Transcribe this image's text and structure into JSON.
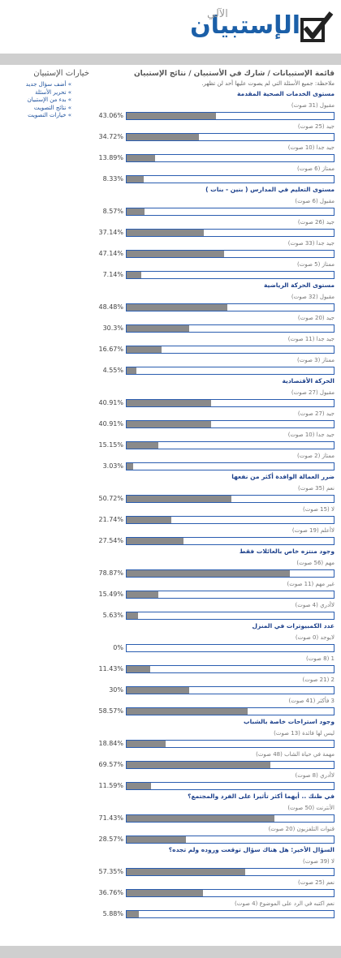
{
  "header": {
    "logo_title": "الإستبيان",
    "logo_subtitle": "الآلي"
  },
  "sidebar": {
    "title": "خيارات الإستبيان",
    "links": [
      "» أضف سؤال جديد",
      "» تحرير الأسئلة",
      "» بدء من الإستبيان",
      "» نتائج التصويت",
      "» خيارات التصويت"
    ]
  },
  "breadcrumb": "قائمة الإستبيانات / شارك في الأستبيان / نتائج الإستبيان",
  "note": "ملاحظة: جميع الأسئلة التي لم يصوت عليها أحد لن تظهر.",
  "questions": [
    {
      "title": "مستوى الخدمات الصحية المقدمة",
      "options": [
        {
          "label": "مقبول (31 صوت)",
          "percent": 43.06,
          "percent_label": "43.06%"
        },
        {
          "label": "جيد (25 صوت)",
          "percent": 34.72,
          "percent_label": "34.72%"
        },
        {
          "label": "جيد جدا (10 صوت)",
          "percent": 13.89,
          "percent_label": "13.89%"
        },
        {
          "label": "ممتاز (6 صوت)",
          "percent": 8.33,
          "percent_label": "8.33%"
        }
      ]
    },
    {
      "title": "مستوى التعليم في المدارس ( بنين - بنات )",
      "options": [
        {
          "label": "مقبول (6 صوت)",
          "percent": 8.57,
          "percent_label": "8.57%"
        },
        {
          "label": "جيد (26 صوت)",
          "percent": 37.14,
          "percent_label": "37.14%"
        },
        {
          "label": "جيد جدا (33 صوت)",
          "percent": 47.14,
          "percent_label": "47.14%"
        },
        {
          "label": "ممتاز (5 صوت)",
          "percent": 7.14,
          "percent_label": "7.14%"
        }
      ]
    },
    {
      "title": "مستوى الحركة الرياضية",
      "options": [
        {
          "label": "مقبول (32 صوت)",
          "percent": 48.48,
          "percent_label": "48.48%"
        },
        {
          "label": "جيد (20 صوت)",
          "percent": 30.3,
          "percent_label": "30.3%"
        },
        {
          "label": "جيد جدا (11 صوت)",
          "percent": 16.67,
          "percent_label": "16.67%"
        },
        {
          "label": "ممتاز (3 صوت)",
          "percent": 4.55,
          "percent_label": "4.55%"
        }
      ]
    },
    {
      "title": "الحركة الأقتصادية",
      "options": [
        {
          "label": "مقبول (27 صوت)",
          "percent": 40.91,
          "percent_label": "40.91%"
        },
        {
          "label": "جيد (27 صوت)",
          "percent": 40.91,
          "percent_label": "40.91%"
        },
        {
          "label": "جيد جدا (10 صوت)",
          "percent": 15.15,
          "percent_label": "15.15%"
        },
        {
          "label": "ممتاز (2 صوت)",
          "percent": 3.03,
          "percent_label": "3.03%"
        }
      ]
    },
    {
      "title": "ضرر العمالة الوافدة أكثر من نفعها",
      "options": [
        {
          "label": "نعم (35 صوت)",
          "percent": 50.72,
          "percent_label": "50.72%"
        },
        {
          "label": "لا (15 صوت)",
          "percent": 21.74,
          "percent_label": "21.74%"
        },
        {
          "label": "لاأعلم (19 صوت)",
          "percent": 27.54,
          "percent_label": "27.54%"
        }
      ]
    },
    {
      "title": "وجود منتزه خاص بالعائلات فقط",
      "options": [
        {
          "label": "مهم (56 صوت)",
          "percent": 78.87,
          "percent_label": "78.87%"
        },
        {
          "label": "غير مهم (11 صوت)",
          "percent": 15.49,
          "percent_label": "15.49%"
        },
        {
          "label": "لاأدري (4 صوت)",
          "percent": 5.63,
          "percent_label": "5.63%"
        }
      ]
    },
    {
      "title": "عدد الكمبيوترات في المنزل",
      "options": [
        {
          "label": "لايوجد (0 صوت)",
          "percent": 0,
          "percent_label": "0%"
        },
        {
          "label": "1 (8 صوت)",
          "percent": 11.43,
          "percent_label": "11.43%"
        },
        {
          "label": "2 (21 صوت)",
          "percent": 30,
          "percent_label": "30%"
        },
        {
          "label": "3 فأكثر (41 صوت)",
          "percent": 58.57,
          "percent_label": "58.57%"
        }
      ]
    },
    {
      "title": "وجود استراحات خاصة بالشباب",
      "options": [
        {
          "label": "ليس لها فائدة (13 صوت)",
          "percent": 18.84,
          "percent_label": "18.84%"
        },
        {
          "label": "مهمة في حياة الشاب (48 صوت)",
          "percent": 69.57,
          "percent_label": "69.57%"
        },
        {
          "label": "لاأدري (8 صوت)",
          "percent": 11.59,
          "percent_label": "11.59%"
        }
      ]
    },
    {
      "title": "في ظنك .. أيهما أكثر تأثيرا على الفرد والمجتمع؟",
      "options": [
        {
          "label": "الأنترنت (50 صوت)",
          "percent": 71.43,
          "percent_label": "71.43%"
        },
        {
          "label": "قنوات التلفزيون (20 صوت)",
          "percent": 28.57,
          "percent_label": "28.57%"
        }
      ]
    },
    {
      "title": "السؤال الأخير: هل هناك سؤال توقعت وروده ولم تجده؟",
      "options": [
        {
          "label": "لا (39 صوت)",
          "percent": 57.35,
          "percent_label": "57.35%"
        },
        {
          "label": "نعم (25 صوت)",
          "percent": 36.76,
          "percent_label": "36.76%"
        },
        {
          "label": "نعم اكتبه في الرد على الموضوع (4 صوت)",
          "percent": 5.88,
          "percent_label": "5.88%"
        }
      ]
    }
  ]
}
